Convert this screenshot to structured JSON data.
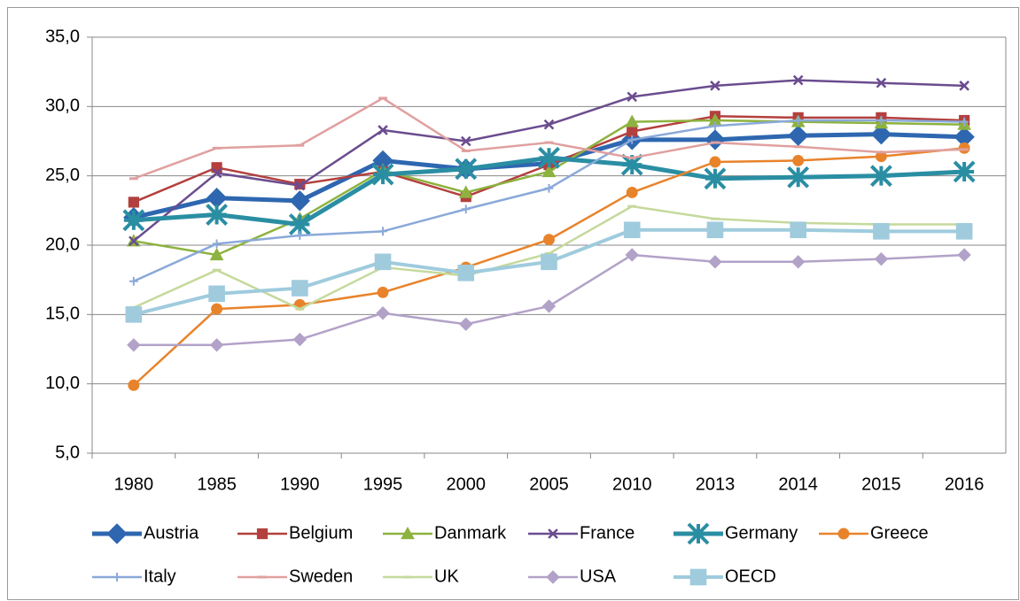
{
  "chart_data": {
    "type": "line",
    "categories": [
      "1980",
      "1985",
      "1990",
      "1995",
      "2000",
      "2005",
      "2010",
      "2013",
      "2014",
      "2015",
      "2016"
    ],
    "ylim": [
      5,
      35
    ],
    "yticks": [
      {
        "value": 5,
        "label": "5,0"
      },
      {
        "value": 10,
        "label": "10,0"
      },
      {
        "value": 15,
        "label": "15,0"
      },
      {
        "value": 20,
        "label": "20,0"
      },
      {
        "value": 25,
        "label": "25,0"
      },
      {
        "value": 30,
        "label": "30,0"
      },
      {
        "value": 35,
        "label": "35,0"
      }
    ],
    "grid": true,
    "legend": "bottom",
    "series": [
      {
        "name": "Austria",
        "color": "#2e67b0",
        "marker": "diamond",
        "line_width": 5,
        "values": [
          22.0,
          23.4,
          23.2,
          26.1,
          25.5,
          25.9,
          27.6,
          27.6,
          27.9,
          28.0,
          27.8
        ]
      },
      {
        "name": "Belgium",
        "color": "#b3403e",
        "marker": "square",
        "line_width": 2.5,
        "values": [
          23.1,
          25.6,
          24.4,
          25.3,
          23.5,
          25.8,
          28.2,
          29.3,
          29.2,
          29.2,
          29.0
        ]
      },
      {
        "name": "Danmark",
        "color": "#8db23f",
        "marker": "triangle",
        "line_width": 2.5,
        "values": [
          20.3,
          19.3,
          21.9,
          25.4,
          23.8,
          25.3,
          28.9,
          29.0,
          28.9,
          28.8,
          28.7
        ]
      },
      {
        "name": "France",
        "color": "#6b4c8f",
        "marker": "x",
        "line_width": 2.5,
        "values": [
          20.3,
          25.2,
          24.3,
          28.3,
          27.5,
          28.7,
          30.7,
          31.5,
          31.9,
          31.7,
          31.5
        ]
      },
      {
        "name": "Germany",
        "color": "#2a8ea3",
        "marker": "star",
        "line_width": 5,
        "values": [
          21.8,
          22.2,
          21.5,
          25.1,
          25.5,
          26.3,
          25.8,
          24.8,
          24.9,
          25.0,
          25.3
        ]
      },
      {
        "name": "Greece",
        "color": "#e8832b",
        "marker": "circle",
        "line_width": 2.5,
        "values": [
          9.9,
          15.4,
          15.7,
          16.6,
          18.4,
          20.4,
          23.8,
          26.0,
          26.1,
          26.4,
          27.0
        ]
      },
      {
        "name": "Italy",
        "color": "#8aa9d9",
        "marker": "plus",
        "line_width": 2.5,
        "values": [
          17.4,
          20.1,
          20.7,
          21.0,
          22.6,
          24.1,
          27.6,
          28.6,
          29.0,
          29.0,
          28.9
        ]
      },
      {
        "name": "Sweden",
        "color": "#e0a09f",
        "marker": "dash",
        "line_width": 2.5,
        "values": [
          24.8,
          27.0,
          27.2,
          30.6,
          26.8,
          27.4,
          26.3,
          27.4,
          27.1,
          26.7,
          26.9
        ]
      },
      {
        "name": "UK",
        "color": "#c5d99c",
        "marker": "dash",
        "line_width": 2.5,
        "values": [
          15.5,
          18.2,
          15.4,
          18.4,
          17.8,
          19.4,
          22.8,
          21.9,
          21.6,
          21.5,
          21.5
        ]
      },
      {
        "name": "USA",
        "color": "#b2a2c8",
        "marker": "diamond",
        "line_width": 2.5,
        "values": [
          12.8,
          12.8,
          13.2,
          15.1,
          14.3,
          15.6,
          19.3,
          18.8,
          18.8,
          19.0,
          19.3
        ]
      },
      {
        "name": "OECD",
        "color": "#9fcbdd",
        "marker": "square",
        "line_width": 4,
        "values": [
          15.0,
          16.5,
          16.9,
          18.8,
          18.0,
          18.8,
          21.1,
          21.1,
          21.1,
          21.0,
          21.0
        ]
      }
    ]
  }
}
